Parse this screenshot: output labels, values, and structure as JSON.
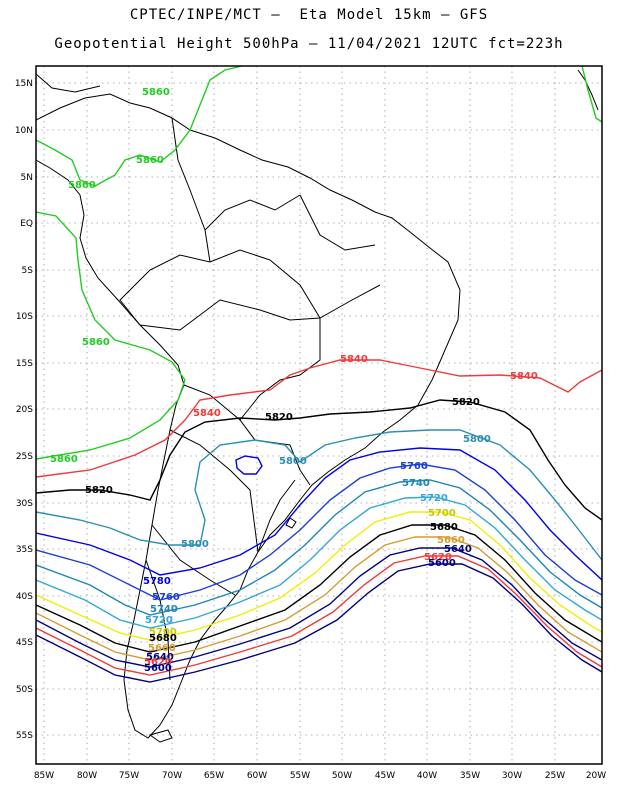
{
  "title_line1": "CPTEC/INPE/MCT –  Eta Model 15km – GFS",
  "title_line2": "Geopotential Height 500hPa – 11/04/2021 12UTC fct=223h",
  "lat_labels": [
    "15N",
    "10N",
    "5N",
    "EQ",
    "5S",
    "10S",
    "15S",
    "20S",
    "25S",
    "30S",
    "35S",
    "40S",
    "45S",
    "50S",
    "55S"
  ],
  "lon_labels": [
    "85W",
    "80W",
    "75W",
    "70W",
    "65W",
    "60W",
    "55W",
    "50W",
    "45W",
    "40W",
    "35W",
    "30W",
    "25W",
    "20W"
  ],
  "contour_labels": {
    "c5860_a": "5860",
    "c5860_b": "5860",
    "c5860_c": "5860",
    "c5860_d": "5860",
    "c5860_e": "5860",
    "c5840_a": "5840",
    "c5840_b": "5840",
    "c5840_c": "5840",
    "c5820_a": "5820",
    "c5820_b": "5820",
    "c5820_c": "5820",
    "c5800_a": "5800",
    "c5800_b": "5800",
    "c5800_c": "5800",
    "c5780_a": "5780",
    "c5760_a": "5760",
    "c5760_b": "5760",
    "c5740_a": "5740",
    "c5740_b": "5740",
    "c5720_a": "5720",
    "c5720_b": "5720",
    "c5700_a": "5700",
    "c5700_b": "5700",
    "c5680_a": "5680",
    "c5680_b": "5680",
    "c5660_a": "5660",
    "c5660_b": "5660",
    "c5640_a": "5640",
    "c5640_b": "5640",
    "c5620_a": "5620",
    "c5620_b": "5620",
    "c5600_a": "5600",
    "c5600_b": "5600"
  },
  "colors": {
    "c5860": "#22cc22",
    "c5840": "#ee3b3b",
    "c5820": "#000000",
    "c5800": "#2b8fb5",
    "c5780": "#0000ee",
    "c5760": "#1b3dd6",
    "c5740": "#1c86b4",
    "c5720": "#33a7d8",
    "c5700": "#f0f000",
    "c5680": "#000000",
    "c5660": "#d59c32",
    "c5640": "#000080",
    "c5620": "#ee3b3b",
    "c5600": "#000080"
  }
}
